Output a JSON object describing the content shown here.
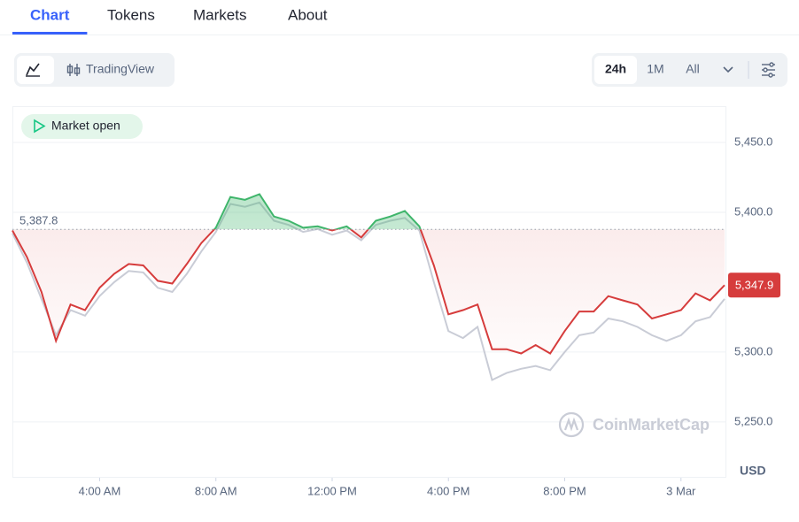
{
  "tabs": [
    "Chart",
    "Tokens",
    "Markets",
    "About"
  ],
  "active_tab": 0,
  "toolbar": {
    "trading_view": "TradingView",
    "ranges": [
      "24h",
      "1M",
      "All"
    ],
    "active_range": 0
  },
  "chart_data": {
    "type": "line",
    "badge": "Market open",
    "currency": "USD",
    "watermark": "CoinMarketCap",
    "reference": {
      "value": 5387.8,
      "label": "5,387.8"
    },
    "current": {
      "value": 5347.9,
      "label": "5,347.9"
    },
    "ylim": [
      5210,
      5476
    ],
    "yticks": [
      {
        "value": 5250,
        "label": "5,250.0"
      },
      {
        "value": 5300,
        "label": "5,300.0"
      },
      {
        "value": 5400,
        "label": "5,400.0"
      },
      {
        "value": 5450,
        "label": "5,450.0"
      }
    ],
    "xlim": [
      0,
      49
    ],
    "xticks": [
      {
        "value": 6,
        "label": "4:00 AM"
      },
      {
        "value": 14,
        "label": "8:00 AM"
      },
      {
        "value": 22,
        "label": "12:00 PM"
      },
      {
        "value": 30,
        "label": "4:00 PM"
      },
      {
        "value": 38,
        "label": "8:00 PM"
      },
      {
        "value": 46,
        "label": "3 Mar"
      }
    ],
    "grid": true,
    "up_color": "#3fb56b",
    "down_color": "#d63c3c",
    "series": [
      {
        "color": "#c9ccd6",
        "values": [
          5385,
          5364,
          5338,
          5312,
          5330,
          5326,
          5340,
          5350,
          5358,
          5357,
          5346,
          5343,
          5356,
          5372,
          5386,
          5406,
          5404,
          5407,
          5394,
          5391,
          5386,
          5388,
          5384,
          5387,
          5380,
          5391,
          5394,
          5396,
          5387,
          5350,
          5315,
          5310,
          5318,
          5280,
          5285,
          5288,
          5290,
          5287,
          5300,
          5312,
          5314,
          5324,
          5322,
          5318,
          5312,
          5308,
          5312,
          5322,
          5325,
          5338
        ]
      },
      {
        "color": "#d63c3c",
        "values": [
          5387,
          5368,
          5343,
          5308,
          5334,
          5330,
          5346,
          5356,
          5363,
          5362,
          5351,
          5349,
          5363,
          5378,
          5389,
          5411,
          5409,
          5413,
          5397,
          5394,
          5389,
          5390,
          5387,
          5390,
          5382,
          5394,
          5397,
          5401,
          5390,
          5362,
          5327,
          5330,
          5334,
          5302,
          5302,
          5299,
          5305,
          5299,
          5315,
          5329,
          5329,
          5340,
          5337,
          5334,
          5324,
          5327,
          5330,
          5342,
          5337,
          5347.9
        ],
        "main": true
      }
    ]
  }
}
